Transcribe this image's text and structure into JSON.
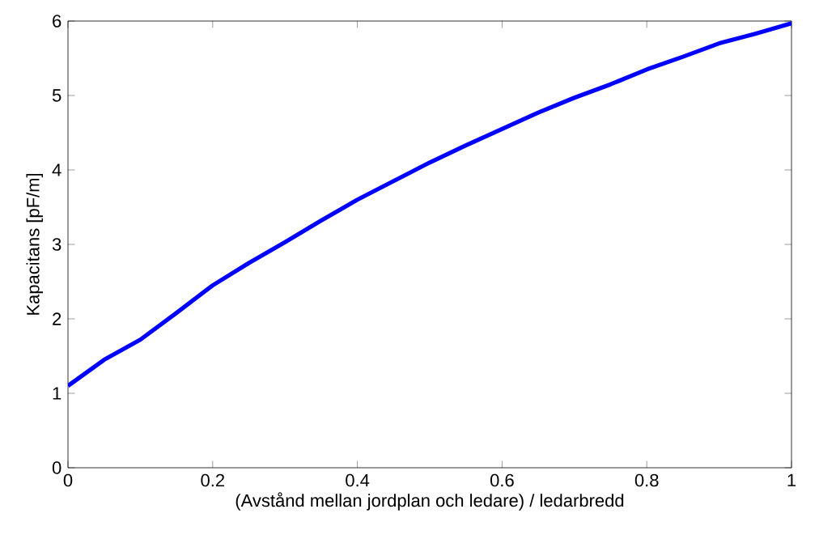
{
  "chart_data": {
    "type": "line",
    "xlabel": "(Avstånd mellan jordplan och ledare) / ledarbredd",
    "ylabel": "Kapacitans [pF/m]",
    "x": [
      0,
      0.05,
      0.1,
      0.15,
      0.2,
      0.25,
      0.3,
      0.35,
      0.4,
      0.45,
      0.5,
      0.55,
      0.6,
      0.65,
      0.7,
      0.75,
      0.8,
      0.85,
      0.9,
      0.95,
      1.0
    ],
    "series": [
      {
        "color": "#0000ff",
        "values": [
          1.1,
          1.45,
          1.72,
          2.08,
          2.45,
          2.75,
          3.03,
          3.32,
          3.6,
          3.85,
          4.1,
          4.33,
          4.55,
          4.77,
          4.97,
          5.15,
          5.35,
          5.52,
          5.7,
          5.83,
          5.97
        ]
      }
    ],
    "xlim": [
      0,
      1
    ],
    "ylim": [
      0,
      6
    ],
    "xticks": [
      0,
      0.2,
      0.4,
      0.6,
      0.8,
      1
    ],
    "yticks": [
      0,
      1,
      2,
      3,
      4,
      5,
      6
    ],
    "grid": false,
    "marker": "none",
    "line_style": "solid"
  }
}
